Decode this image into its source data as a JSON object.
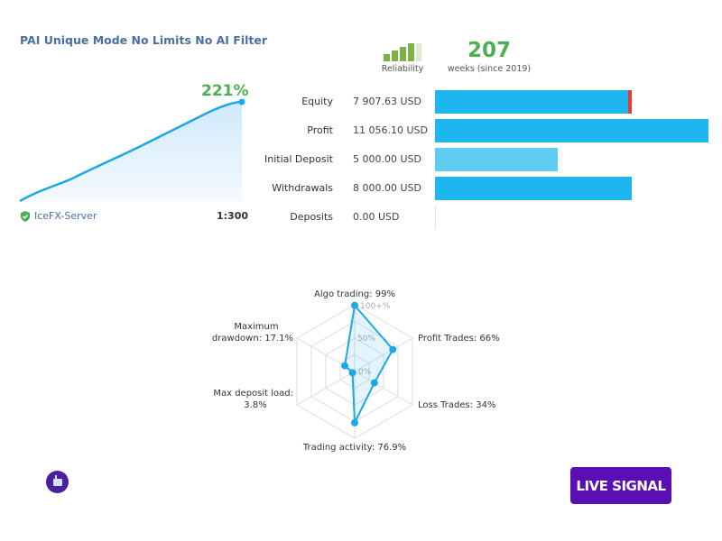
{
  "title": "PAI Unique Mode No Limits No AI Filter",
  "reliability": {
    "label": "Reliability",
    "level_bars": 4,
    "max_bars": 5,
    "color": "#7cb342"
  },
  "weeks": {
    "value": "207",
    "label": "weeks (since 2019)"
  },
  "growth": {
    "value": "221%",
    "color": "#4caf50"
  },
  "server": {
    "name": "IceFX-Server",
    "leverage": "1:300"
  },
  "stats": [
    {
      "label": "Equity",
      "value": "7 907.63 USD",
      "fraction": 0.72,
      "color": "#1eb6ee",
      "marker": true
    },
    {
      "label": "Profit",
      "value": "11 056.10 USD",
      "fraction": 1.0,
      "color": "#1eb6ee"
    },
    {
      "label": "Initial Deposit",
      "value": "5 000.00 USD",
      "fraction": 0.45,
      "color": "#5fcdf3"
    },
    {
      "label": "Withdrawals",
      "value": "8 000.00 USD",
      "fraction": 0.72,
      "color": "#1eb6ee"
    },
    {
      "label": "Deposits",
      "value": "0.00 USD",
      "fraction": 0,
      "color": "#1eb6ee"
    }
  ],
  "radar": {
    "ticks": [
      "100+%",
      "50%",
      "0%"
    ],
    "axes": [
      {
        "label": "Algo trading: 99%",
        "value": 99
      },
      {
        "label": "Profit Trades: 66%",
        "value": 66
      },
      {
        "label": "Loss Trades: 34%",
        "value": 34
      },
      {
        "label": "Trading activity: 76.9%",
        "value": 76.9
      },
      {
        "label_lines": [
          "Max deposit load:",
          "3.8%"
        ],
        "value": 3.8
      },
      {
        "label_lines": [
          "Maximum",
          "drawdown: 17.1%"
        ],
        "value": 17.1
      }
    ]
  },
  "live_signal": "LIVE SIGNAL"
}
